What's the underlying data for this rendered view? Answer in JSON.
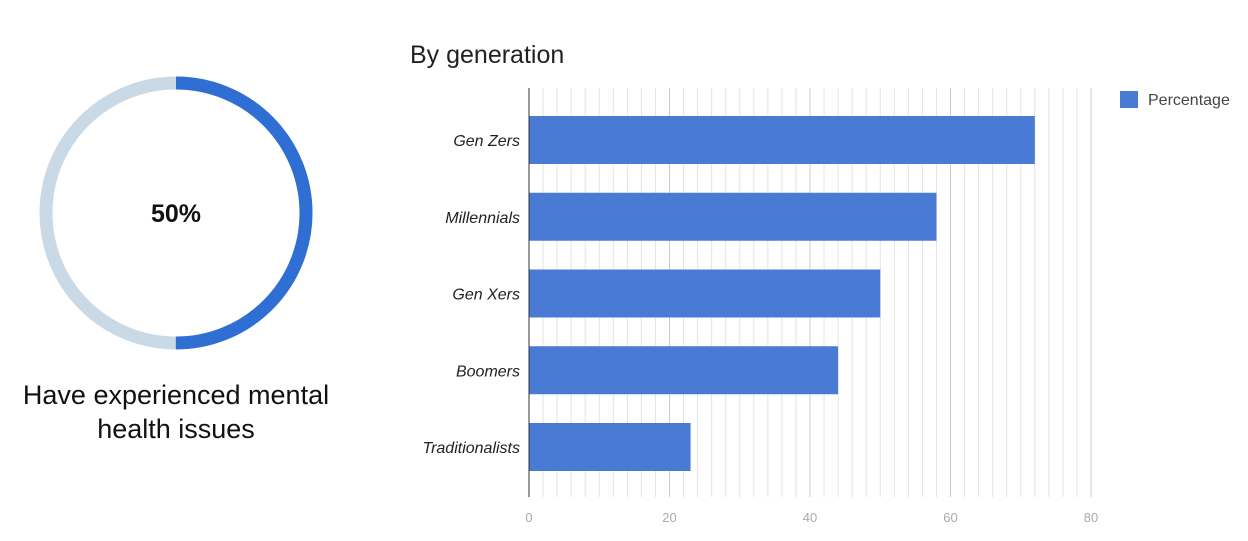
{
  "donut": {
    "value": 50,
    "label": "50%",
    "caption_line1": "Have experienced mental",
    "caption_line2": "health issues",
    "color_fill": "#2f6fd4",
    "color_track": "#c9d9e6"
  },
  "chart_data": {
    "type": "bar",
    "orientation": "horizontal",
    "title": "By generation",
    "categories": [
      "Gen Zers",
      "Millennials",
      "Gen Xers",
      "Boomers",
      "Traditionalists"
    ],
    "series": [
      {
        "name": "Percentage",
        "values": [
          72,
          58,
          50,
          44,
          23
        ],
        "color": "#4a7bd4"
      }
    ],
    "xlim": [
      0,
      80
    ],
    "xticks": [
      "0",
      "20",
      "40",
      "60",
      "80"
    ],
    "grid": true,
    "legend": "top-right"
  }
}
